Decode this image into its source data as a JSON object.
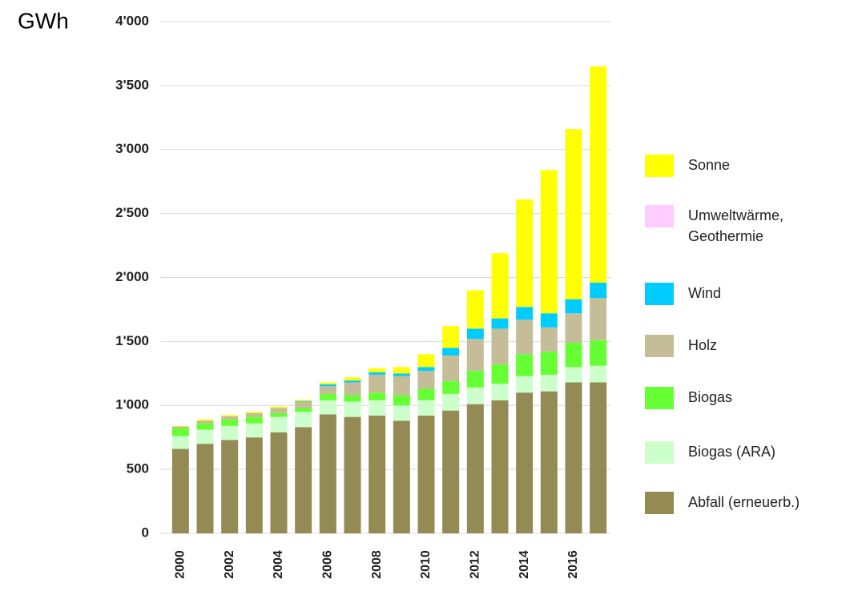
{
  "chart_data": {
    "type": "stacked_bar",
    "y_label": "GWh",
    "categories": [
      "2000",
      null,
      "2002",
      null,
      "2004",
      null,
      "2006",
      null,
      "2008",
      null,
      "2010",
      null,
      "2012",
      null,
      "2014",
      null,
      "2016",
      null
    ],
    "series": [
      {
        "name": "Abfall (erneuerb.)",
        "color": "#948a54",
        "values": [
          660,
          700,
          730,
          750,
          790,
          830,
          930,
          910,
          920,
          880,
          920,
          960,
          1010,
          1040,
          1100,
          1110,
          1180,
          1180
        ]
      },
      {
        "name": "Biogas (ARA)",
        "color": "#ccffcc",
        "values": [
          100,
          110,
          110,
          110,
          120,
          120,
          110,
          120,
          120,
          120,
          120,
          130,
          130,
          130,
          130,
          130,
          120,
          130
        ]
      },
      {
        "name": "Biogas",
        "color": "#66ff33",
        "values": [
          60,
          50,
          50,
          50,
          30,
          30,
          50,
          50,
          60,
          80,
          90,
          100,
          130,
          150,
          170,
          180,
          190,
          200
        ]
      },
      {
        "name": "Holz",
        "color": "#c4bd97",
        "values": [
          15,
          20,
          25,
          30,
          40,
          50,
          60,
          100,
          140,
          150,
          140,
          200,
          250,
          280,
          270,
          190,
          230,
          330
        ]
      },
      {
        "name": "Wind",
        "color": "#00ccff",
        "values": [
          0,
          0,
          0,
          0,
          0,
          5,
          15,
          15,
          20,
          20,
          30,
          60,
          80,
          80,
          100,
          110,
          110,
          120
        ]
      },
      {
        "name": "Umweltwärme, Geothermie",
        "color": "#ffccff",
        "values": [
          0,
          0,
          0,
          0,
          0,
          0,
          0,
          0,
          0,
          0,
          0,
          0,
          0,
          0,
          0,
          0,
          0,
          0
        ]
      },
      {
        "name": "Sonne",
        "color": "#ffff00",
        "values": [
          5,
          10,
          10,
          10,
          10,
          10,
          15,
          25,
          30,
          50,
          100,
          170,
          300,
          510,
          840,
          1120,
          1330,
          1690
        ]
      }
    ],
    "ylim": [
      0,
      4000
    ],
    "yticks": [
      0,
      500,
      {
        "value": 1000,
        "label": "1'000"
      },
      {
        "value": 1500,
        "label": "1'500"
      },
      {
        "value": 2000,
        "label": "2'000"
      },
      {
        "value": 2500,
        "label": "2'500"
      },
      {
        "value": 3000,
        "label": "3'000"
      },
      {
        "value": 3500,
        "label": "3'500"
      },
      {
        "value": 4000,
        "label": "4'000"
      }
    ],
    "grid": true
  }
}
